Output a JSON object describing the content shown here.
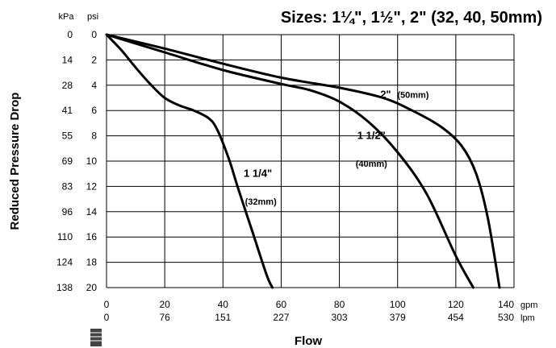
{
  "chart_data": {
    "type": "line",
    "title": "Sizes: 1¼\", 1½\", 2\" (32, 40, 50mm)",
    "xlabel": "Flow",
    "ylabel": "Reduced Pressure Drop",
    "x_unit_primary": "gpm",
    "x_unit_secondary": "lpm",
    "y_unit_left": "kPa",
    "y_unit_right": "psi",
    "xlim": [
      0,
      140
    ],
    "ylim": [
      0,
      20
    ],
    "y_inverted": true,
    "grid": true,
    "x_ticks_gpm": [
      "0",
      "20",
      "40",
      "60",
      "80",
      "100",
      "120",
      "140"
    ],
    "x_ticks_lpm": [
      "0",
      "76",
      "151",
      "227",
      "303",
      "379",
      "454",
      "530"
    ],
    "y_ticks_psi": [
      "0",
      "2",
      "4",
      "6",
      "8",
      "10",
      "12",
      "14",
      "16",
      "18",
      "20"
    ],
    "y_ticks_kpa": [
      "0",
      "14",
      "28",
      "41",
      "55",
      "69",
      "83",
      "96",
      "110",
      "124",
      "138"
    ],
    "series": [
      {
        "name": "1 1/4\" (32mm)",
        "label_line1": "1 1/4\"",
        "label_line2": "(32mm)",
        "x": [
          0,
          5,
          10,
          15,
          20,
          25,
          30,
          35,
          38,
          42,
          45,
          50,
          55,
          57
        ],
        "y": [
          0,
          1.2,
          2.6,
          3.9,
          5.0,
          5.6,
          6.0,
          6.6,
          7.5,
          9.8,
          12.0,
          15.5,
          19.0,
          20
        ]
      },
      {
        "name": "1 1/2\" (40mm)",
        "label_line1": "1 1/2\"",
        "label_line2": "(40mm)",
        "x": [
          0,
          20,
          40,
          60,
          70,
          80,
          90,
          100,
          110,
          120,
          126
        ],
        "y": [
          0,
          1.4,
          2.8,
          3.9,
          4.4,
          5.3,
          6.9,
          9.3,
          12.6,
          17.5,
          20
        ]
      },
      {
        "name": "2\" (50mm)",
        "label_line1": "2\"",
        "label_line2": "(50mm)",
        "x": [
          0,
          20,
          40,
          60,
          80,
          95,
          105,
          115,
          122,
          127,
          131,
          135
        ],
        "y": [
          0,
          1.1,
          2.3,
          3.4,
          4.2,
          5.0,
          6.0,
          7.3,
          8.8,
          11.0,
          14.5,
          20
        ]
      }
    ]
  }
}
